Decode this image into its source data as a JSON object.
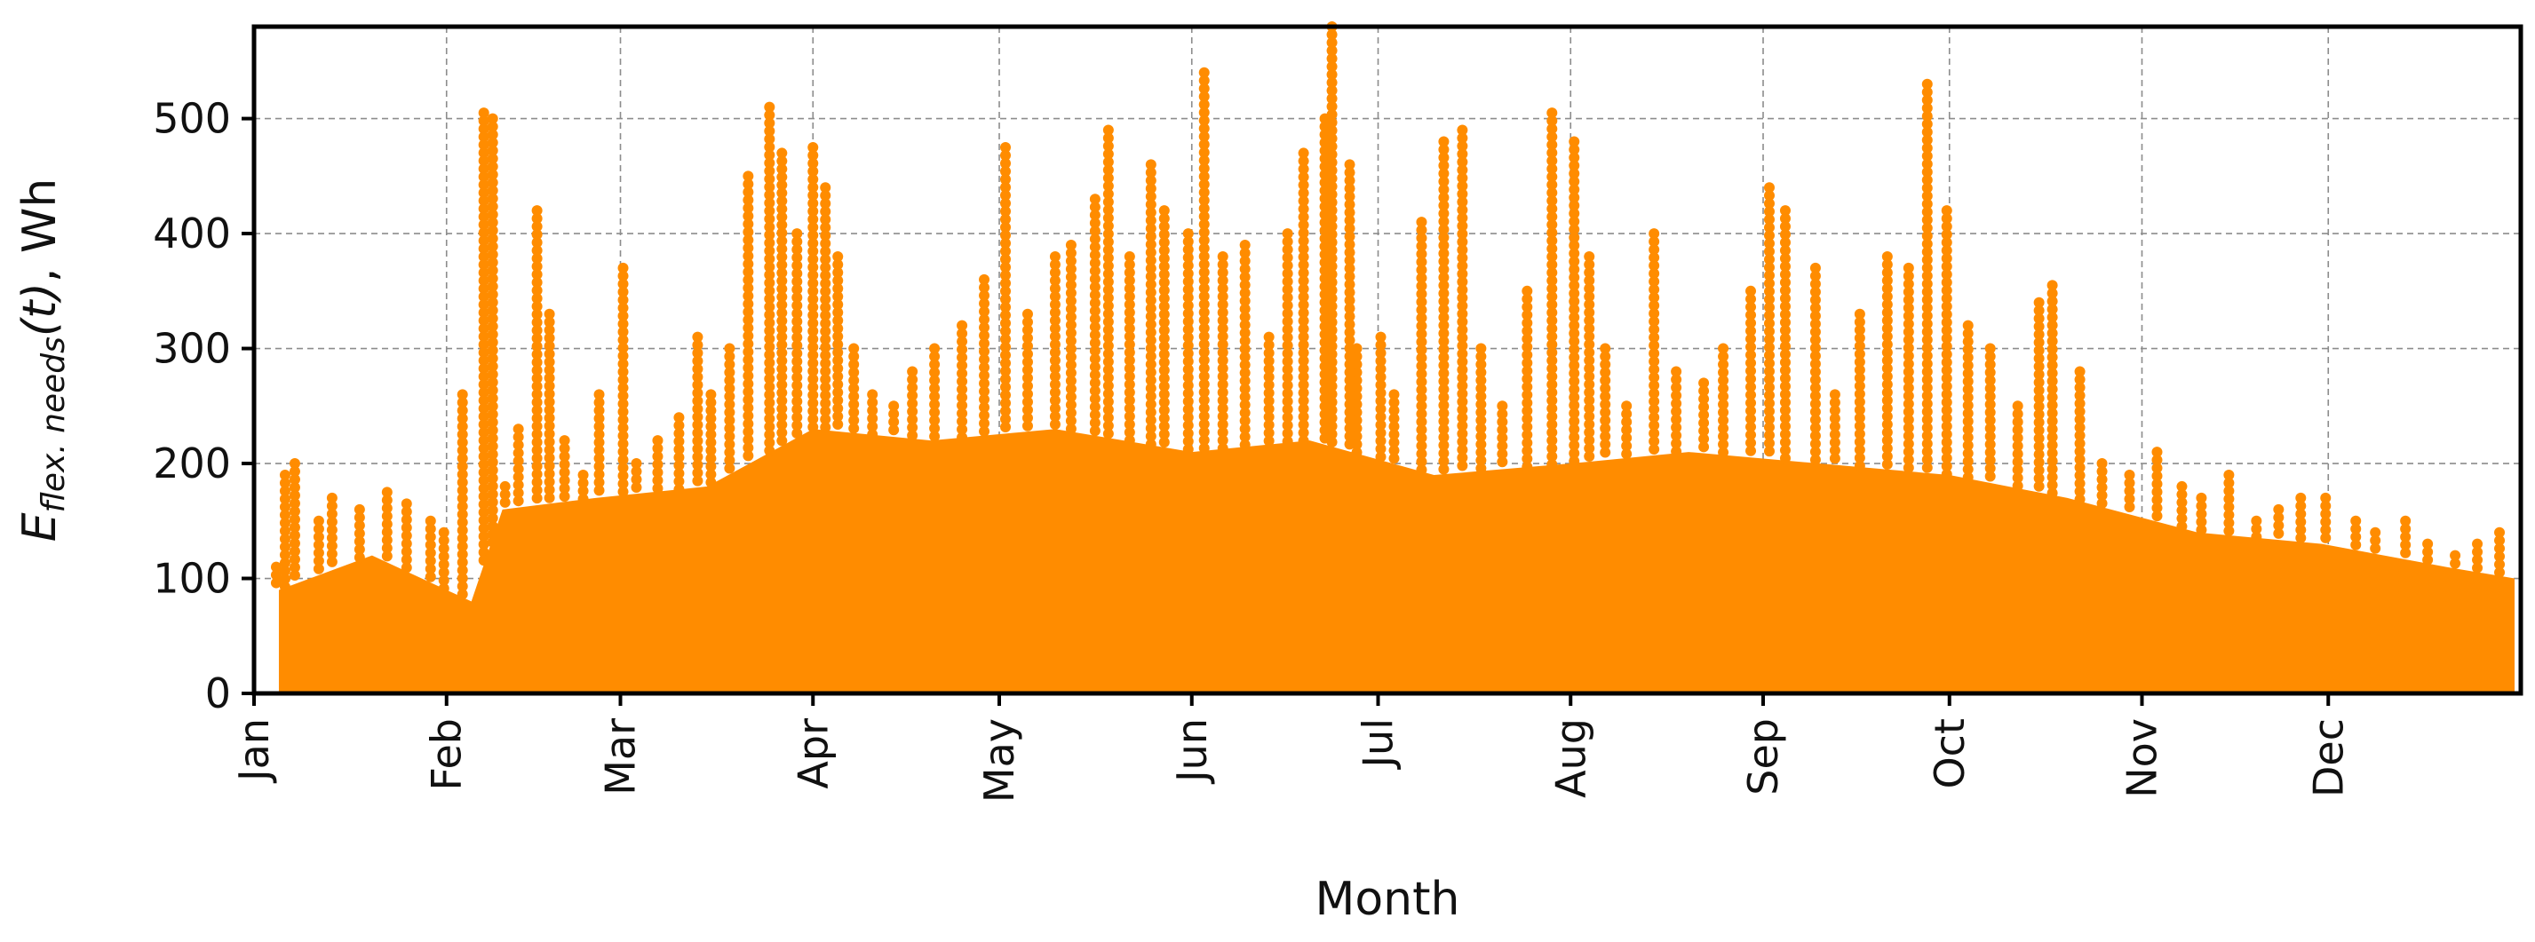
{
  "chart_data": {
    "type": "scatter",
    "title": "",
    "xlabel": "Month",
    "ylabel": "E_flex.needs(t), Wh",
    "ylabel_parts": {
      "base": "E",
      "subscript": "flex. needs",
      "argument": "(t)",
      "suffix": ", Wh"
    },
    "ylim": [
      0,
      580
    ],
    "yticks": [
      0,
      100,
      200,
      300,
      400,
      500
    ],
    "ytick_labels": [
      "0",
      "100",
      "200",
      "300",
      "400",
      "500"
    ],
    "xlim": [
      "Jan 1",
      "Dec 31"
    ],
    "xticks": [
      "Jan",
      "Feb",
      "Mar",
      "Apr",
      "May",
      "Jun",
      "Jul",
      "Aug",
      "Sep",
      "Oct",
      "Nov",
      "Dec"
    ],
    "grid": true,
    "legend": "none",
    "marker_color": "#ff8c00",
    "series": [
      {
        "note_omitted": false,
        "x": [
          "Jan 5",
          "Jan 6",
          "Jan 8",
          "Jan 11",
          "Jan 14",
          "Jan 18",
          "Jan 22",
          "Jan 26",
          "Jan 29",
          "Feb 1",
          "Feb 4",
          "Feb 7",
          "Feb 8",
          "Feb 10",
          "Feb 13",
          "Feb 16",
          "Feb 18",
          "Feb 20",
          "Feb 23",
          "Feb 26",
          "Mar 1",
          "Mar 4",
          "Mar 7",
          "Mar 10",
          "Mar 13",
          "Mar 16",
          "Mar 19",
          "Mar 22",
          "Mar 25",
          "Mar 27",
          "Mar 29",
          "Apr 1",
          "Apr 3",
          "Apr 5",
          "Apr 8",
          "Apr 11",
          "Apr 14",
          "Apr 17",
          "Apr 21",
          "Apr 25",
          "Apr 29",
          "May 2",
          "May 6",
          "May 10",
          "May 13",
          "May 16",
          "May 19",
          "May 22",
          "May 25",
          "May 28",
          "May 31",
          "Jun 3",
          "Jun 6",
          "Jun 10",
          "Jun 13",
          "Jun 16",
          "Jun 19",
          "Jun 22",
          "Jun 24",
          "Jun 26",
          "Jun 28",
          "Jul 1",
          "Jul 4",
          "Jul 8",
          "Jul 12",
          "Jul 15",
          "Jul 18",
          "Jul 21",
          "Jul 25",
          "Jul 29",
          "Aug 2",
          "Aug 4",
          "Aug 7",
          "Aug 10",
          "Aug 14",
          "Aug 18",
          "Aug 22",
          "Aug 26",
          "Aug 30",
          "Sep 2",
          "Sep 5",
          "Sep 9",
          "Sep 13",
          "Sep 17",
          "Sep 21",
          "Sep 24",
          "Sep 27",
          "Oct 1",
          "Oct 4",
          "Oct 8",
          "Oct 12",
          "Oct 15",
          "Oct 18",
          "Oct 22",
          "Oct 26",
          "Oct 30",
          "Nov 3",
          "Nov 7",
          "Nov 11",
          "Nov 15",
          "Nov 19",
          "Nov 23",
          "Nov 27",
          "Dec 1",
          "Dec 5",
          "Dec 9",
          "Dec 13",
          "Dec 17",
          "Dec 21",
          "Dec 25",
          "Dec 29"
        ],
        "y": [
          110,
          190,
          200,
          150,
          170,
          160,
          175,
          165,
          150,
          140,
          260,
          505,
          500,
          180,
          230,
          420,
          330,
          220,
          190,
          260,
          370,
          200,
          220,
          240,
          310,
          260,
          300,
          450,
          510,
          470,
          400,
          475,
          440,
          380,
          300,
          260,
          250,
          280,
          300,
          320,
          360,
          475,
          330,
          380,
          390,
          430,
          490,
          380,
          460,
          420,
          400,
          540,
          380,
          390,
          310,
          400,
          470,
          500,
          580,
          460,
          300,
          310,
          260,
          410,
          480,
          490,
          300,
          250,
          350,
          505,
          480,
          380,
          300,
          250,
          400,
          280,
          270,
          300,
          350,
          440,
          420,
          370,
          260,
          330,
          380,
          370,
          530,
          420,
          320,
          300,
          250,
          340,
          355,
          280,
          200,
          190,
          210,
          180,
          170,
          190,
          150,
          160,
          170,
          170,
          150,
          140,
          150,
          130,
          120,
          130,
          140
        ]
      }
    ],
    "envelope_note": "Dense cloud filling the range from 0 to the band ceiling; points above are spikes read off the plot.",
    "band_ceiling_x": [
      "Jan 5",
      "Jan 20",
      "Feb 5",
      "Feb 10",
      "Feb 25",
      "Mar 15",
      "Apr 1",
      "Apr 20",
      "May 10",
      "Jun 1",
      "Jun 20",
      "Jul 10",
      "Aug 1",
      "Aug 20",
      "Sep 10",
      "Oct 1",
      "Oct 20",
      "Nov 10",
      "Nov 30",
      "Dec 20",
      "Dec 31"
    ],
    "band_ceiling_y": [
      90,
      120,
      80,
      160,
      170,
      180,
      230,
      220,
      230,
      210,
      220,
      190,
      200,
      210,
      200,
      190,
      170,
      140,
      130,
      110,
      100
    ]
  }
}
